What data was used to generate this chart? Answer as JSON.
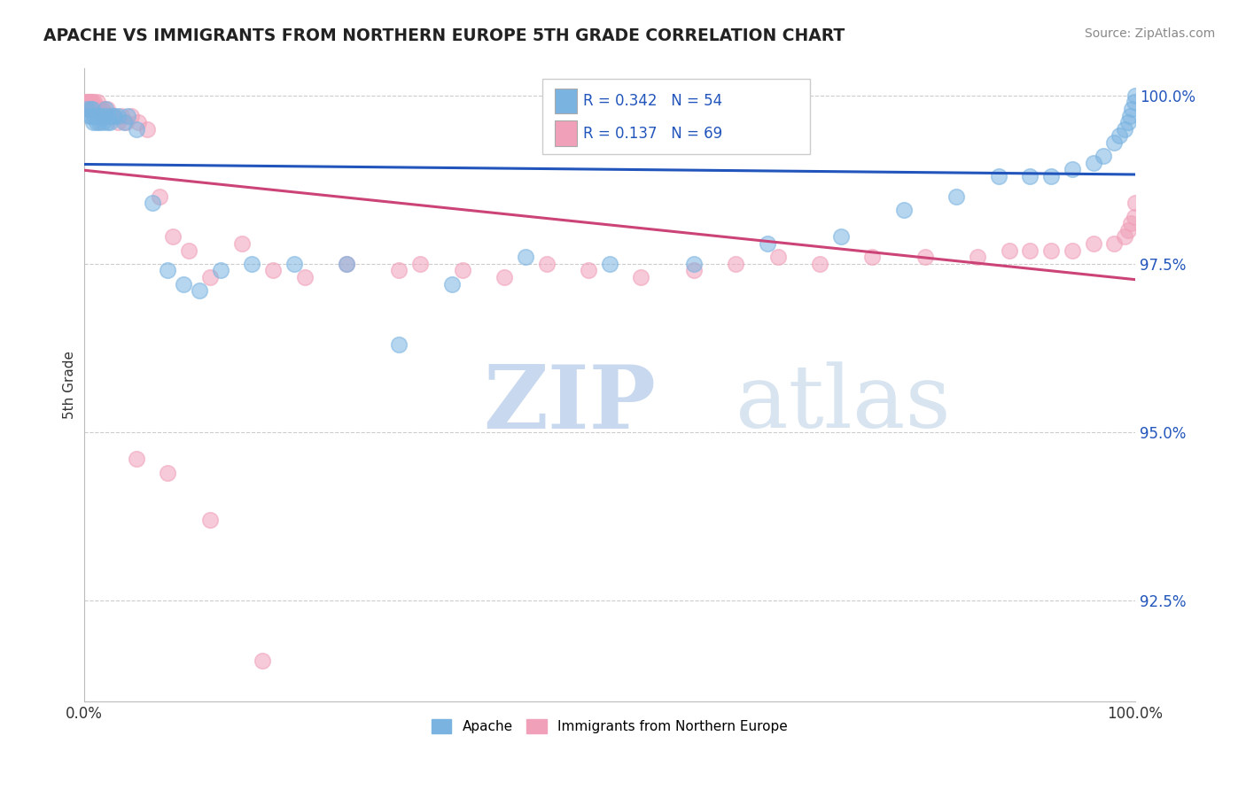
{
  "title": "APACHE VS IMMIGRANTS FROM NORTHERN EUROPE 5TH GRADE CORRELATION CHART",
  "source": "Source: ZipAtlas.com",
  "ylabel": "5th Grade",
  "xlim": [
    0.0,
    1.0
  ],
  "ylim": [
    0.91,
    1.004
  ],
  "yticks": [
    0.925,
    0.95,
    0.975,
    1.0
  ],
  "ytick_labels": [
    "92.5%",
    "95.0%",
    "97.5%",
    "100.0%"
  ],
  "xticks": [
    0.0,
    1.0
  ],
  "xtick_labels": [
    "0.0%",
    "100.0%"
  ],
  "legend_R1": "R = 0.342",
  "legend_N1": "N = 54",
  "legend_R2": "R = 0.137",
  "legend_N2": "N = 69",
  "blue_scatter": "#7ab3e0",
  "pink_scatter": "#f0a0b8",
  "blue_line": "#2255bb",
  "pink_line": "#cc4477",
  "background_color": "#ffffff",
  "grid_color": "#cccccc",
  "watermark_color": "#dde8f5",
  "apache_x": [
    0.003,
    0.005,
    0.006,
    0.007,
    0.008,
    0.009,
    0.01,
    0.012,
    0.013,
    0.015,
    0.016,
    0.018,
    0.019,
    0.021,
    0.022,
    0.023,
    0.025,
    0.027,
    0.029,
    0.032,
    0.038,
    0.042,
    0.05,
    0.065,
    0.08,
    0.095,
    0.11,
    0.13,
    0.16,
    0.2,
    0.25,
    0.3,
    0.35,
    0.42,
    0.5,
    0.58,
    0.65,
    0.72,
    0.78,
    0.83,
    0.87,
    0.9,
    0.92,
    0.94,
    0.96,
    0.97,
    0.98,
    0.985,
    0.99,
    0.993,
    0.995,
    0.997,
    0.999,
    1.0
  ],
  "apache_y": [
    0.998,
    0.997,
    0.998,
    0.997,
    0.998,
    0.996,
    0.997,
    0.996,
    0.997,
    0.996,
    0.997,
    0.996,
    0.997,
    0.998,
    0.996,
    0.997,
    0.996,
    0.997,
    0.997,
    0.997,
    0.996,
    0.997,
    0.995,
    0.984,
    0.974,
    0.972,
    0.971,
    0.974,
    0.975,
    0.975,
    0.975,
    0.963,
    0.972,
    0.976,
    0.975,
    0.975,
    0.978,
    0.979,
    0.983,
    0.985,
    0.988,
    0.988,
    0.988,
    0.989,
    0.99,
    0.991,
    0.993,
    0.994,
    0.995,
    0.996,
    0.997,
    0.998,
    0.999,
    1.0
  ],
  "immigrants_x": [
    0.002,
    0.003,
    0.004,
    0.005,
    0.005,
    0.006,
    0.006,
    0.007,
    0.007,
    0.008,
    0.009,
    0.01,
    0.011,
    0.012,
    0.013,
    0.014,
    0.015,
    0.016,
    0.017,
    0.018,
    0.019,
    0.02,
    0.022,
    0.024,
    0.026,
    0.028,
    0.032,
    0.036,
    0.04,
    0.045,
    0.052,
    0.06,
    0.072,
    0.085,
    0.1,
    0.12,
    0.15,
    0.18,
    0.21,
    0.25,
    0.3,
    0.32,
    0.36,
    0.4,
    0.44,
    0.48,
    0.53,
    0.58,
    0.62,
    0.66,
    0.7,
    0.75,
    0.8,
    0.85,
    0.88,
    0.9,
    0.92,
    0.94,
    0.96,
    0.98,
    0.99,
    0.993,
    0.996,
    0.999,
    1.0,
    0.05,
    0.08,
    0.12,
    0.17
  ],
  "immigrants_y": [
    0.999,
    0.999,
    0.999,
    0.999,
    0.998,
    0.999,
    0.998,
    0.999,
    0.998,
    0.999,
    0.998,
    0.999,
    0.998,
    0.998,
    0.999,
    0.998,
    0.998,
    0.998,
    0.997,
    0.998,
    0.997,
    0.997,
    0.998,
    0.997,
    0.997,
    0.997,
    0.996,
    0.997,
    0.996,
    0.997,
    0.996,
    0.995,
    0.985,
    0.979,
    0.977,
    0.973,
    0.978,
    0.974,
    0.973,
    0.975,
    0.974,
    0.975,
    0.974,
    0.973,
    0.975,
    0.974,
    0.973,
    0.974,
    0.975,
    0.976,
    0.975,
    0.976,
    0.976,
    0.976,
    0.977,
    0.977,
    0.977,
    0.977,
    0.978,
    0.978,
    0.979,
    0.98,
    0.981,
    0.982,
    0.984,
    0.946,
    0.944,
    0.937,
    0.916
  ]
}
